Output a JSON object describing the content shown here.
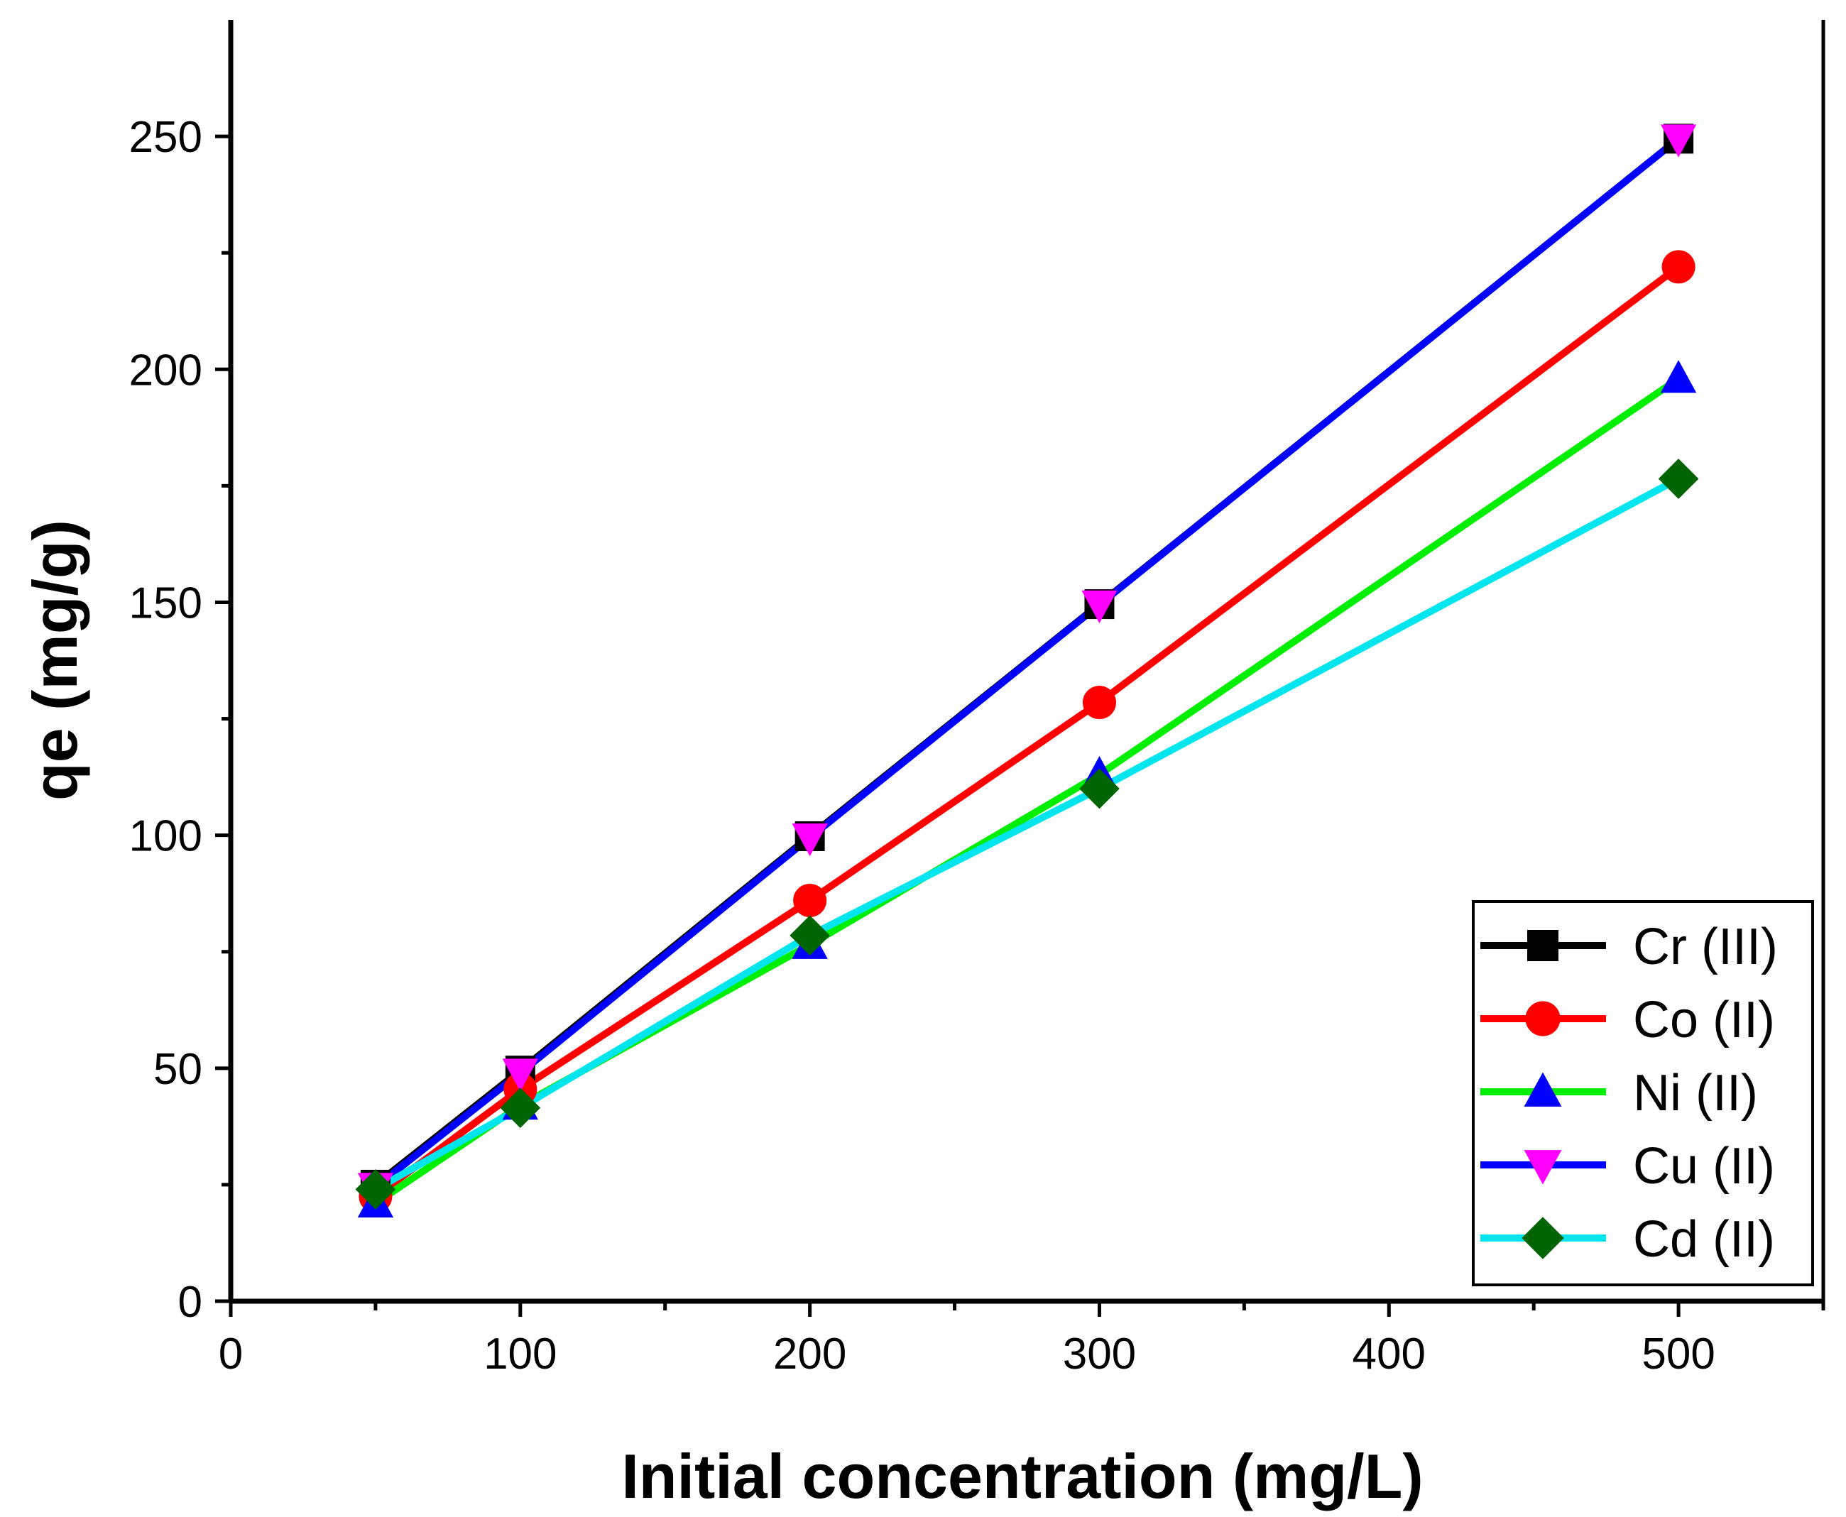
{
  "chart_data": {
    "type": "line",
    "title": "",
    "xlabel": "Initial concentration (mg/L)",
    "ylabel": "qe (mg/g)",
    "xlim": [
      0,
      550
    ],
    "ylim": [
      0,
      275
    ],
    "xticks": [
      0,
      100,
      200,
      300,
      400,
      500
    ],
    "yticks": [
      0,
      50,
      100,
      150,
      200,
      250
    ],
    "x": [
      50,
      100,
      200,
      300,
      500
    ],
    "legend_position": "bottom-right",
    "series": [
      {
        "name": "Cr (III)",
        "line_color": "#000000",
        "marker": "square",
        "marker_color": "#000000",
        "values": [
          25,
          49.5,
          99.8,
          149.6,
          249.5
        ]
      },
      {
        "name": "Co (II)",
        "line_color": "#ff0000",
        "marker": "circle",
        "marker_color": "#ff0000",
        "values": [
          22.5,
          45.5,
          86,
          128.5,
          222
        ]
      },
      {
        "name": "Ni (II)",
        "line_color": "#00ee00",
        "marker": "triangle-up",
        "marker_color": "#0000ff",
        "values": [
          21,
          42,
          76.5,
          113,
          198
        ]
      },
      {
        "name": "Cu (II)",
        "line_color": "#0000ff",
        "marker": "triangle-down",
        "marker_color": "#ff00ff",
        "values": [
          24.5,
          49,
          99.5,
          149.5,
          249.5
        ]
      },
      {
        "name": "Cd (II)",
        "line_color": "#00e5ee",
        "marker": "diamond",
        "marker_color": "#006400",
        "values": [
          24,
          41.5,
          78.5,
          110,
          176.5
        ]
      }
    ]
  }
}
